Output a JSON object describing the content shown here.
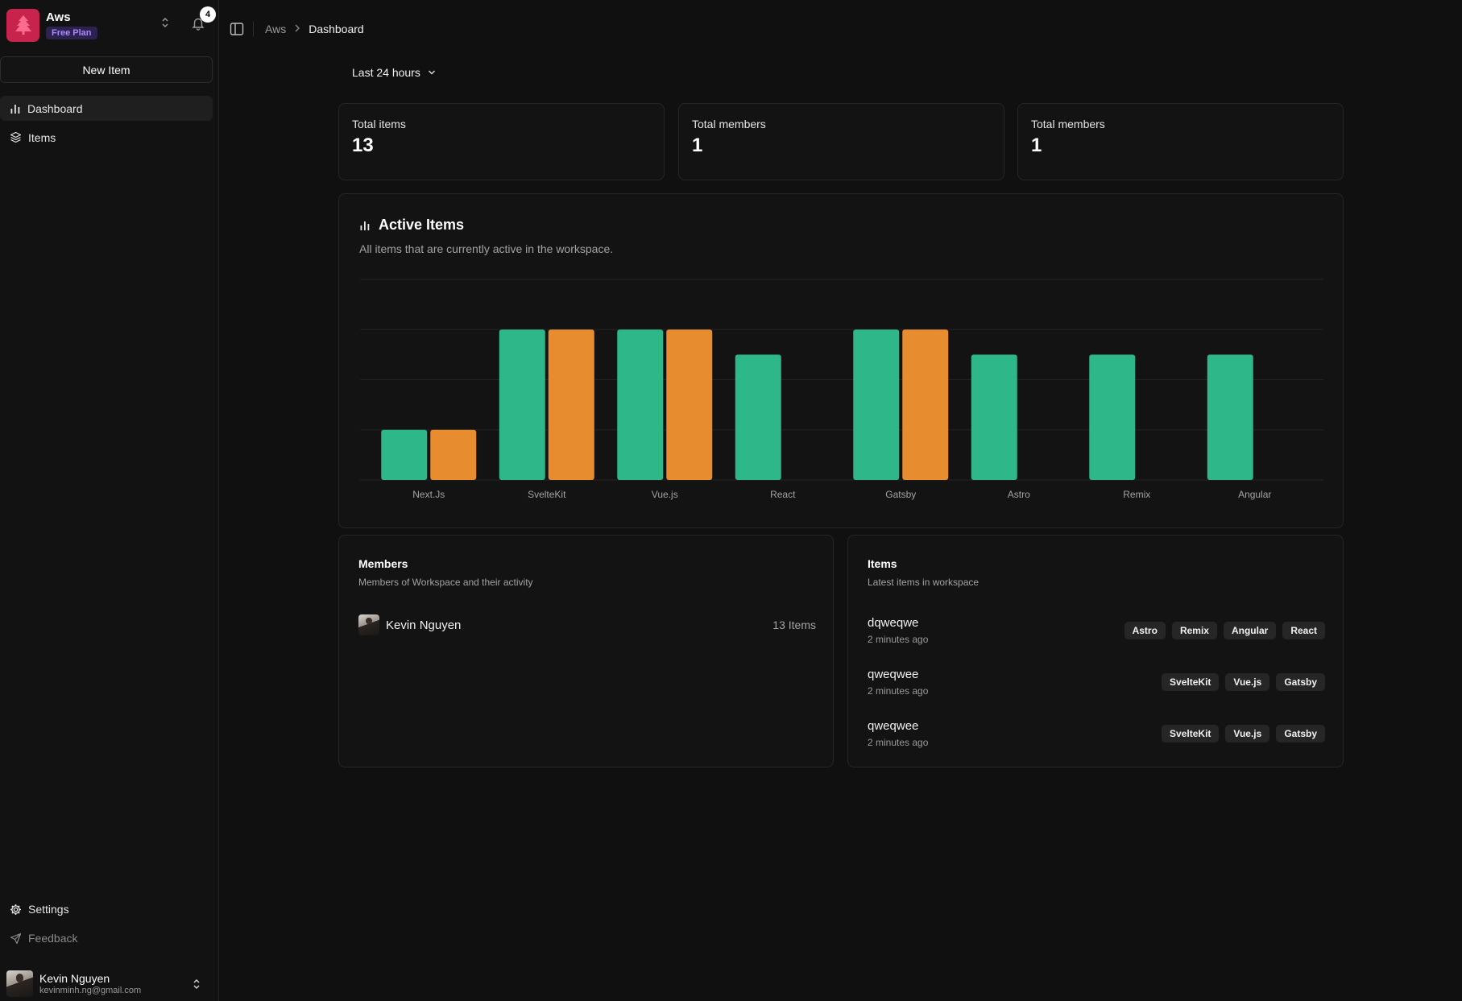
{
  "workspace": {
    "name": "Aws",
    "plan": "Free Plan",
    "notifications": "4"
  },
  "sidebar": {
    "new_item": "New Item",
    "nav": [
      {
        "label": "Dashboard",
        "icon": "bar-chart-icon",
        "active": true
      },
      {
        "label": "Items",
        "icon": "layers-icon",
        "active": false
      }
    ],
    "settings": "Settings",
    "feedback": "Feedback"
  },
  "user": {
    "name": "Kevin Nguyen",
    "email": "kevinminh.ng@gmail.com"
  },
  "breadcrumb": {
    "root": "Aws",
    "current": "Dashboard"
  },
  "time_range": "Last 24 hours",
  "stats": [
    {
      "label": "Total items",
      "value": "13"
    },
    {
      "label": "Total members",
      "value": "1"
    },
    {
      "label": "Total members",
      "value": "1"
    }
  ],
  "chart": {
    "title": "Active Items",
    "subtitle": "All items that are currently active in the workspace."
  },
  "chart_data": {
    "type": "bar",
    "categories": [
      "Next.Js",
      "SvelteKit",
      "Vue.js",
      "React",
      "Gatsby",
      "Astro",
      "Remix",
      "Angular"
    ],
    "series": [
      {
        "values": [
          1,
          3,
          3,
          2.5,
          3,
          2.5,
          2.5,
          2.5
        ],
        "color": "#2eb88a"
      },
      {
        "values": [
          1,
          3,
          3,
          0,
          3,
          0,
          0,
          0
        ],
        "color": "#e88c30"
      }
    ],
    "ylim": [
      0,
      4
    ],
    "grid": true,
    "colors": {
      "primary": "#2eb88a",
      "secondary": "#e88c30"
    }
  },
  "members": {
    "title": "Members",
    "subtitle": "Members of Workspace and their activity",
    "list": [
      {
        "name": "Kevin Nguyen",
        "count": "13 Items"
      }
    ]
  },
  "items": {
    "title": "Items",
    "subtitle": "Latest items in workspace",
    "list": [
      {
        "name": "dqweqwe",
        "time": "2 minutes ago",
        "tags": [
          "Astro",
          "Remix",
          "Angular",
          "React"
        ]
      },
      {
        "name": "qweqwee",
        "time": "2 minutes ago",
        "tags": [
          "SvelteKit",
          "Vue.js",
          "Gatsby"
        ]
      },
      {
        "name": "qweqwee",
        "time": "2 minutes ago",
        "tags": [
          "SvelteKit",
          "Vue.js",
          "Gatsby"
        ]
      }
    ]
  }
}
